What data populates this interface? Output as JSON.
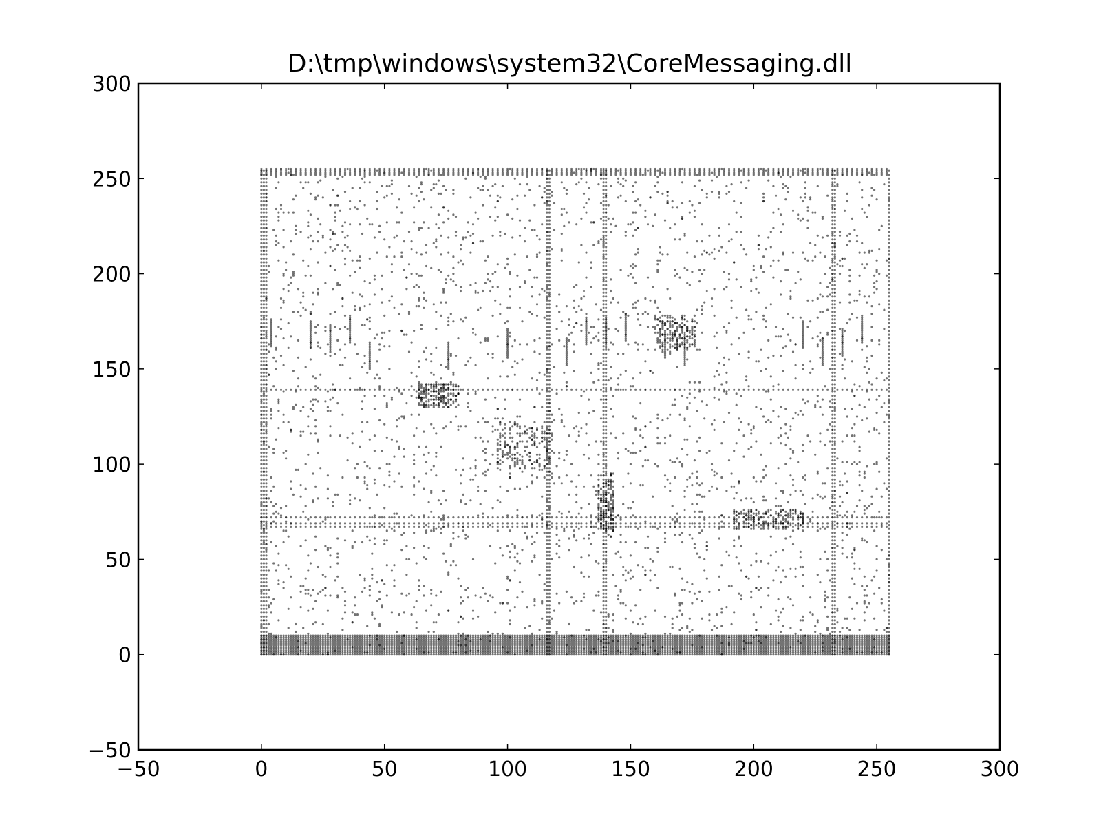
{
  "chart_data": {
    "type": "scatter",
    "title": "D:\\tmp\\windows\\system32\\CoreMessaging.dll",
    "xlabel": "",
    "ylabel": "",
    "xlim": [
      -50,
      300
    ],
    "ylim": [
      -50,
      300
    ],
    "x_ticks": [
      -50,
      0,
      50,
      100,
      150,
      200,
      250,
      300
    ],
    "y_ticks": [
      -50,
      0,
      50,
      100,
      150,
      200,
      250,
      300
    ],
    "x_tick_labels": [
      "−50",
      "0",
      "50",
      "100",
      "150",
      "200",
      "250",
      "300"
    ],
    "y_tick_labels": [
      "−50",
      "0",
      "50",
      "100",
      "150",
      "200",
      "250",
      "300"
    ],
    "grid": false,
    "legend": "none",
    "marker_color": "#000000",
    "point_domain": {
      "x": [
        0,
        255
      ],
      "y": [
        0,
        255
      ]
    },
    "series": [
      {
        "points_description_hidden": true,
        "dense_rows_y": [
          0,
          1,
          2,
          3,
          4,
          5,
          6,
          7,
          8,
          9,
          10,
          255,
          254,
          253,
          252,
          72,
          69,
          67,
          139
        ],
        "dense_columns_x": [
          0,
          1,
          2,
          139,
          140,
          232,
          233,
          116,
          117,
          255
        ],
        "cluster_regions": [
          {
            "x": [
              96,
              118
            ],
            "y": [
              98,
              122
            ]
          },
          {
            "x": [
              137,
              143
            ],
            "y": [
              65,
              95
            ]
          },
          {
            "x": [
              160,
              176
            ],
            "y": [
              160,
              178
            ]
          },
          {
            "x": [
              192,
              220
            ],
            "y": [
              66,
              76
            ]
          },
          {
            "x": [
              64,
              80
            ],
            "y": [
              130,
              142
            ]
          }
        ]
      }
    ]
  }
}
